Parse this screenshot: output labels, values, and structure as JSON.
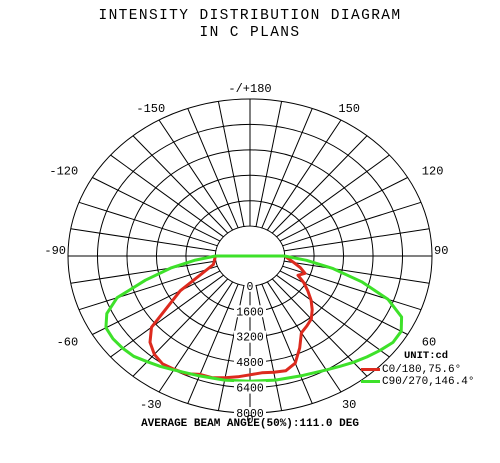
{
  "title_line1": "INTENSITY DISTRIBUTION DIAGRAM",
  "title_line2": "IN C PLANS",
  "footer": "AVERAGE BEAM ANGLE(50%):111.0 DEG",
  "legend_unit": "UNIT:cd",
  "chart_data": {
    "type": "polar",
    "angle_labels": [
      {
        "angle": 180,
        "label": "-/+180"
      },
      {
        "angle": 150,
        "label": "150"
      },
      {
        "angle": -150,
        "label": "-150"
      },
      {
        "angle": 120,
        "label": "120"
      },
      {
        "angle": -120,
        "label": "-120"
      },
      {
        "angle": 90,
        "label": "90"
      },
      {
        "angle": -90,
        "label": "-90"
      },
      {
        "angle": 60,
        "label": "60"
      },
      {
        "angle": -60,
        "label": "-60"
      },
      {
        "angle": 30,
        "label": "30"
      },
      {
        "angle": -30,
        "label": "-30"
      },
      {
        "angle": 0,
        "label": "0"
      }
    ],
    "radial_labels": [
      "0",
      "1600",
      "3200",
      "4800",
      "6400",
      "8000"
    ],
    "radial_max": 8000,
    "radial_step": 1600,
    "grid": true,
    "legend_position": "bottom-right",
    "series": [
      {
        "name": "C0/180,75.6°",
        "color": "#dd2a1e",
        "points": [
          {
            "angle": -90,
            "value": 0
          },
          {
            "angle": -75,
            "value": 180
          },
          {
            "angle": -60,
            "value": 2500
          },
          {
            "angle": -50,
            "value": 5100
          },
          {
            "angle": -45,
            "value": 5800
          },
          {
            "angle": -40,
            "value": 6200
          },
          {
            "angle": -35,
            "value": 6400
          },
          {
            "angle": -30,
            "value": 6350
          },
          {
            "angle": -25,
            "value": 6300
          },
          {
            "angle": -20,
            "value": 6050
          },
          {
            "angle": -15,
            "value": 6050
          },
          {
            "angle": -10,
            "value": 5900
          },
          {
            "angle": -5,
            "value": 5750
          },
          {
            "angle": 0,
            "value": 5600
          },
          {
            "angle": 5,
            "value": 5500
          },
          {
            "angle": 10,
            "value": 5550
          },
          {
            "angle": 15,
            "value": 5600
          },
          {
            "angle": 20,
            "value": 5300
          },
          {
            "angle": 25,
            "value": 4500
          },
          {
            "angle": 30,
            "value": 3700
          },
          {
            "angle": 35,
            "value": 3500
          },
          {
            "angle": 40,
            "value": 3300
          },
          {
            "angle": 45,
            "value": 2900
          },
          {
            "angle": 50,
            "value": 2450
          },
          {
            "angle": 55,
            "value": 1950
          },
          {
            "angle": 60,
            "value": 1500
          },
          {
            "angle": 65,
            "value": 1000
          },
          {
            "angle": 70,
            "value": 1300
          },
          {
            "angle": 75,
            "value": 950
          },
          {
            "angle": 80,
            "value": 550
          },
          {
            "angle": 90,
            "value": 0
          }
        ]
      },
      {
        "name": "C90/270,146.4°",
        "color": "#3ee12a",
        "points": [
          {
            "angle": -90,
            "value": 0
          },
          {
            "angle": -85,
            "value": 1100
          },
          {
            "angle": -80,
            "value": 2500
          },
          {
            "angle": -75,
            "value": 4000
          },
          {
            "angle": -70,
            "value": 5800
          },
          {
            "angle": -65,
            "value": 6700
          },
          {
            "angle": -60,
            "value": 7150
          },
          {
            "angle": -55,
            "value": 7200
          },
          {
            "angle": -50,
            "value": 7150
          },
          {
            "angle": -45,
            "value": 7050
          },
          {
            "angle": -40,
            "value": 6800
          },
          {
            "angle": -35,
            "value": 6600
          },
          {
            "angle": -30,
            "value": 6400
          },
          {
            "angle": -20,
            "value": 6150
          },
          {
            "angle": -10,
            "value": 6050
          },
          {
            "angle": 0,
            "value": 6000
          },
          {
            "angle": 10,
            "value": 6050
          },
          {
            "angle": 20,
            "value": 6150
          },
          {
            "angle": 30,
            "value": 6400
          },
          {
            "angle": 35,
            "value": 6600
          },
          {
            "angle": 40,
            "value": 6850
          },
          {
            "angle": 45,
            "value": 7100
          },
          {
            "angle": 50,
            "value": 7350
          },
          {
            "angle": 55,
            "value": 7600
          },
          {
            "angle": 60,
            "value": 7600
          },
          {
            "angle": 65,
            "value": 7200
          },
          {
            "angle": 70,
            "value": 6100
          },
          {
            "angle": 75,
            "value": 4400
          },
          {
            "angle": 80,
            "value": 2700
          },
          {
            "angle": 85,
            "value": 1200
          },
          {
            "angle": 90,
            "value": 0
          }
        ]
      }
    ]
  }
}
